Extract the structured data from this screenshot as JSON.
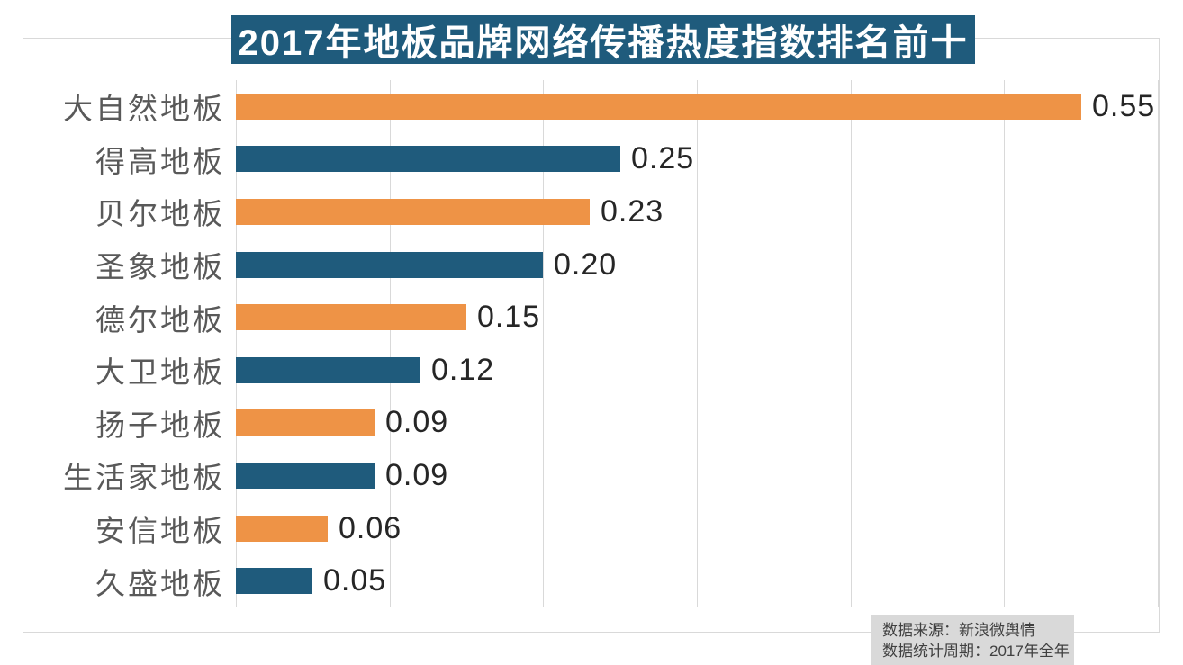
{
  "title": {
    "text": "2017年地板品牌网络传播热度指数排名前十"
  },
  "source_note": {
    "line1": "数据来源：新浪微舆情",
    "line2": "数据统计周期：2017年全年"
  },
  "colors": {
    "accent_orange": "#EE9346",
    "accent_teal": "#1F5B7C",
    "banner_bg": "#1F5B7C",
    "banner_text": "#FFFFFF",
    "grid_line": "#D9D9D9",
    "chart_border": "#D9D9D9",
    "category_label": "#595959",
    "value_label": "#262626",
    "note_bg": "#D9D9D9",
    "note_text": "#404040",
    "background": "#FFFFFF"
  },
  "chart_data": {
    "type": "bar",
    "orientation": "horizontal",
    "title": "2017年地板品牌网络传播热度指数排名前十",
    "categories": [
      "大自然地板",
      "得高地板",
      "贝尔地板",
      "圣象地板",
      "德尔地板",
      "大卫地板",
      "扬子地板",
      "生活家地板",
      "安信地板",
      "久盛地板"
    ],
    "values": [
      0.55,
      0.25,
      0.23,
      0.2,
      0.15,
      0.12,
      0.09,
      0.09,
      0.06,
      0.05
    ],
    "value_labels": [
      "0.55",
      "0.25",
      "0.23",
      "0.20",
      "0.15",
      "0.12",
      "0.09",
      "0.09",
      "0.06",
      "0.05"
    ],
    "bar_colors": [
      "#EE9346",
      "#1F5B7C",
      "#EE9346",
      "#1F5B7C",
      "#EE9346",
      "#1F5B7C",
      "#EE9346",
      "#1F5B7C",
      "#EE9346",
      "#1F5B7C"
    ],
    "xlim": [
      0,
      0.6
    ],
    "gridline_interval": 0.1,
    "grid": "vertical-only",
    "legend": "none",
    "data_labels": "outside-end"
  }
}
